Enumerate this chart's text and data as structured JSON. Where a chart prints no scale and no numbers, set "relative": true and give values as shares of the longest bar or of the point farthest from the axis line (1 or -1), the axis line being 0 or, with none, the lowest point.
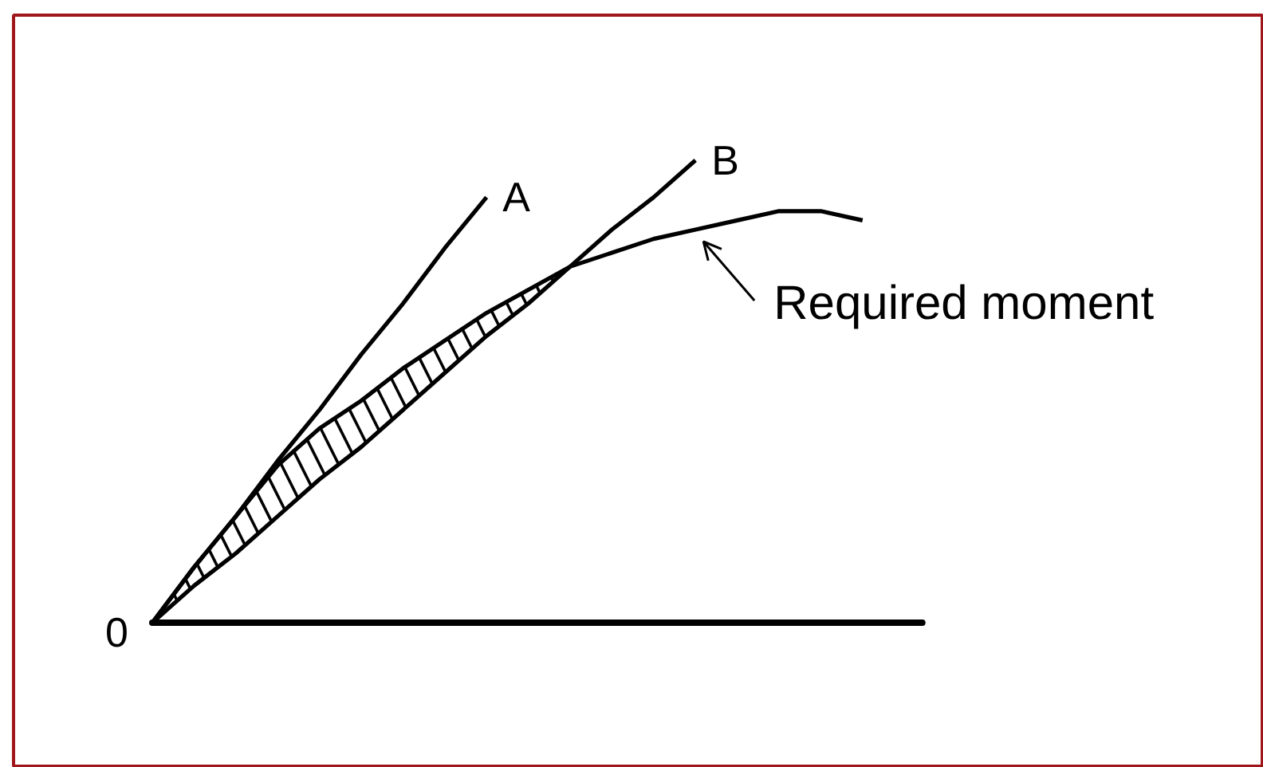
{
  "chart_data": {
    "type": "line",
    "relative": true,
    "tick_labels": false,
    "categories": [
      null,
      null,
      null,
      null,
      null,
      null,
      null,
      null,
      null,
      null,
      null,
      null,
      null,
      null,
      null,
      null,
      null,
      null
    ],
    "series": [
      {
        "name": "A",
        "color": "#000000",
        "values": [
          0,
          0.12,
          0.23,
          0.35,
          0.46,
          0.58,
          0.69,
          0.81,
          0.92,
          null,
          null,
          null,
          null,
          null,
          null,
          null,
          null,
          null
        ]
      },
      {
        "name": "B",
        "color": "#000000",
        "values": [
          0,
          0.08,
          0.15,
          0.23,
          0.31,
          0.38,
          0.46,
          0.54,
          0.62,
          0.69,
          0.77,
          0.85,
          0.92,
          1.0,
          null,
          null,
          null,
          null
        ]
      },
      {
        "name": "Required moment",
        "color": "#000000",
        "values": [
          0,
          0.12,
          0.23,
          0.34,
          0.42,
          0.48,
          0.55,
          0.61,
          0.67,
          0.72,
          0.77,
          0.8,
          0.83,
          0.85,
          0.87,
          0.89,
          0.89,
          0.87
        ],
        "lower": [
          0,
          0.08,
          0.15,
          0.23,
          0.31,
          0.38,
          0.46,
          0.54,
          0.62,
          0.69,
          0.77,
          null,
          null,
          null,
          null,
          null,
          null,
          null
        ],
        "upper": [
          0,
          0.12,
          0.23,
          0.34,
          0.42,
          0.48,
          0.55,
          0.61,
          0.67,
          0.72,
          0.77,
          null,
          null,
          null,
          null,
          null,
          null,
          null
        ]
      }
    ],
    "annotations": [
      "0"
    ]
  }
}
